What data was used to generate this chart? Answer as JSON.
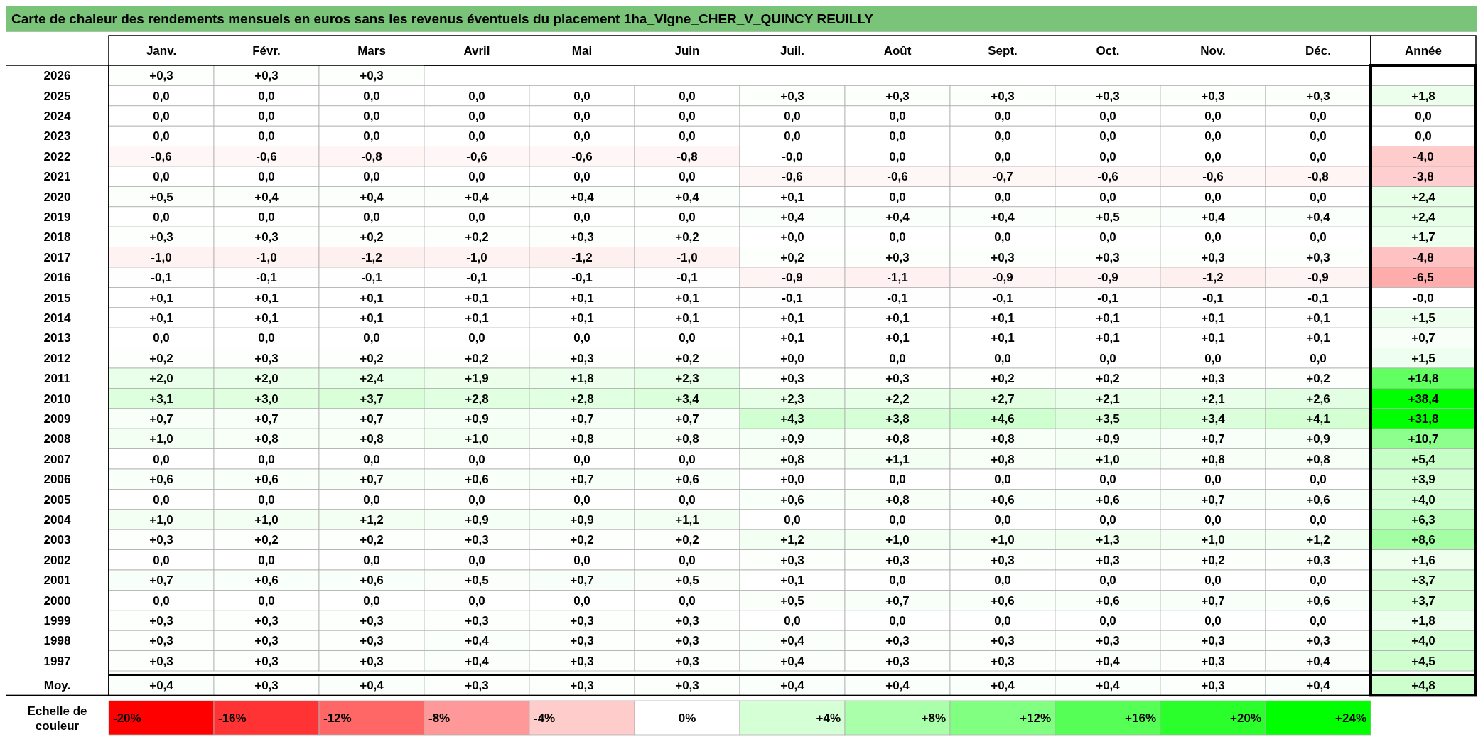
{
  "chart_data": [
    {
      "type": "heatmap",
      "title": "Carte de chaleur des rendements mensuels en euros sans les revenus éventuels du placement 1ha_Vigne_CHER_V_QUINCY REUILLY",
      "categories": [
        "Janv.",
        "Févr.",
        "Mars",
        "Avril",
        "Mai",
        "Juin",
        "Juil.",
        "Août",
        "Sept.",
        "Oct.",
        "Nov.",
        "Déc.",
        "Année"
      ],
      "y_categories": [
        "2026",
        "2025",
        "2024",
        "2023",
        "2022",
        "2021",
        "2020",
        "2019",
        "2018",
        "2017",
        "2016",
        "2015",
        "2014",
        "2013",
        "2012",
        "2011",
        "2010",
        "2009",
        "2008",
        "2007",
        "2006",
        "2005",
        "2004",
        "2003",
        "2002",
        "2001",
        "2000",
        "1999",
        "1998",
        "1997",
        "Moy."
      ],
      "cells": [
        [
          0.3,
          0.3,
          0.3,
          null,
          null,
          null,
          null,
          null,
          null,
          null,
          null,
          null,
          null
        ],
        [
          0.0,
          0.0,
          0.0,
          0.0,
          0.0,
          0.0,
          0.3,
          0.3,
          0.3,
          0.3,
          0.3,
          0.3,
          1.8
        ],
        [
          0.0,
          0.0,
          0.0,
          0.0,
          0.0,
          0.0,
          0.0,
          0.0,
          0.0,
          0.0,
          0.0,
          0.0,
          0.0
        ],
        [
          0.0,
          0.0,
          0.0,
          0.0,
          0.0,
          0.0,
          0.0,
          0.0,
          0.0,
          0.0,
          0.0,
          0.0,
          0.0
        ],
        [
          -0.6,
          -0.6,
          -0.8,
          -0.6,
          -0.6,
          -0.8,
          -0.0,
          0.0,
          0.0,
          0.0,
          0.0,
          0.0,
          -4.0
        ],
        [
          0.0,
          0.0,
          0.0,
          0.0,
          0.0,
          0.0,
          -0.6,
          -0.6,
          -0.7,
          -0.6,
          -0.6,
          -0.8,
          -3.8
        ],
        [
          0.5,
          0.4,
          0.4,
          0.4,
          0.4,
          0.4,
          0.1,
          0.0,
          0.0,
          0.0,
          0.0,
          0.0,
          2.4
        ],
        [
          0.0,
          0.0,
          0.0,
          0.0,
          0.0,
          0.0,
          0.4,
          0.4,
          0.4,
          0.5,
          0.4,
          0.4,
          2.4
        ],
        [
          0.3,
          0.3,
          0.2,
          0.2,
          0.3,
          0.2,
          0.0,
          0.0,
          0.0,
          0.0,
          0.0,
          0.0,
          1.7
        ],
        [
          -1.0,
          -1.0,
          -1.2,
          -1.0,
          -1.2,
          -1.0,
          0.2,
          0.3,
          0.3,
          0.3,
          0.3,
          0.3,
          -4.8
        ],
        [
          -0.1,
          -0.1,
          -0.1,
          -0.1,
          -0.1,
          -0.1,
          -0.9,
          -1.1,
          -0.9,
          -0.9,
          -1.2,
          -0.9,
          -6.5
        ],
        [
          0.1,
          0.1,
          0.1,
          0.1,
          0.1,
          0.1,
          -0.1,
          -0.1,
          -0.1,
          -0.1,
          -0.1,
          -0.1,
          -0.0
        ],
        [
          0.1,
          0.1,
          0.1,
          0.1,
          0.1,
          0.1,
          0.1,
          0.1,
          0.1,
          0.1,
          0.1,
          0.1,
          1.5
        ],
        [
          0.0,
          0.0,
          0.0,
          0.0,
          0.0,
          0.0,
          0.1,
          0.1,
          0.1,
          0.1,
          0.1,
          0.1,
          0.7
        ],
        [
          0.2,
          0.3,
          0.2,
          0.2,
          0.3,
          0.2,
          0.0,
          0.0,
          0.0,
          0.0,
          0.0,
          0.0,
          1.5
        ],
        [
          2.0,
          2.0,
          2.4,
          1.9,
          1.8,
          2.3,
          0.3,
          0.3,
          0.2,
          0.2,
          0.3,
          0.2,
          14.8
        ],
        [
          3.1,
          3.0,
          3.7,
          2.8,
          2.8,
          3.4,
          2.3,
          2.2,
          2.7,
          2.1,
          2.1,
          2.6,
          38.4
        ],
        [
          0.7,
          0.7,
          0.7,
          0.9,
          0.7,
          0.7,
          4.3,
          3.8,
          4.6,
          3.5,
          3.4,
          4.1,
          31.8
        ],
        [
          1.0,
          0.8,
          0.8,
          1.0,
          0.8,
          0.8,
          0.9,
          0.8,
          0.8,
          0.9,
          0.7,
          0.9,
          10.7
        ],
        [
          0.0,
          0.0,
          0.0,
          0.0,
          0.0,
          0.0,
          0.8,
          1.1,
          0.8,
          1.0,
          0.8,
          0.8,
          5.4
        ],
        [
          0.6,
          0.6,
          0.7,
          0.6,
          0.7,
          0.6,
          0.0,
          0.0,
          0.0,
          0.0,
          0.0,
          0.0,
          3.9
        ],
        [
          0.0,
          0.0,
          0.0,
          0.0,
          0.0,
          0.0,
          0.6,
          0.8,
          0.6,
          0.6,
          0.7,
          0.6,
          4.0
        ],
        [
          1.0,
          1.0,
          1.2,
          0.9,
          0.9,
          1.1,
          0.0,
          0.0,
          0.0,
          0.0,
          0.0,
          0.0,
          6.3
        ],
        [
          0.3,
          0.2,
          0.2,
          0.3,
          0.2,
          0.2,
          1.2,
          1.0,
          1.0,
          1.3,
          1.0,
          1.2,
          8.6
        ],
        [
          0.0,
          0.0,
          0.0,
          0.0,
          0.0,
          0.0,
          0.3,
          0.3,
          0.3,
          0.3,
          0.2,
          0.3,
          1.6
        ],
        [
          0.7,
          0.6,
          0.6,
          0.5,
          0.7,
          0.5,
          0.1,
          0.0,
          0.0,
          0.0,
          0.0,
          0.0,
          3.7
        ],
        [
          0.0,
          0.0,
          0.0,
          0.0,
          0.0,
          0.0,
          0.5,
          0.7,
          0.6,
          0.6,
          0.7,
          0.6,
          3.7
        ],
        [
          0.3,
          0.3,
          0.3,
          0.3,
          0.3,
          0.3,
          0.0,
          0.0,
          0.0,
          0.0,
          0.0,
          0.0,
          1.8
        ],
        [
          0.3,
          0.3,
          0.3,
          0.4,
          0.3,
          0.3,
          0.4,
          0.3,
          0.3,
          0.3,
          0.3,
          0.3,
          4.0
        ],
        [
          0.3,
          0.3,
          0.3,
          0.4,
          0.3,
          0.3,
          0.4,
          0.3,
          0.3,
          0.4,
          0.3,
          0.4,
          4.5
        ],
        [
          0.4,
          0.3,
          0.4,
          0.3,
          0.3,
          0.3,
          0.4,
          0.4,
          0.4,
          0.4,
          0.3,
          0.4,
          4.8
        ]
      ],
      "cell_labels": [
        [
          "+0,3",
          "+0,3",
          "+0,3",
          null,
          null,
          null,
          null,
          null,
          null,
          null,
          null,
          null,
          null
        ],
        [
          "0,0",
          "0,0",
          "0,0",
          "0,0",
          "0,0",
          "0,0",
          "+0,3",
          "+0,3",
          "+0,3",
          "+0,3",
          "+0,3",
          "+0,3",
          "+1,8"
        ],
        [
          "0,0",
          "0,0",
          "0,0",
          "0,0",
          "0,0",
          "0,0",
          "0,0",
          "0,0",
          "0,0",
          "0,0",
          "0,0",
          "0,0",
          "0,0"
        ],
        [
          "0,0",
          "0,0",
          "0,0",
          "0,0",
          "0,0",
          "0,0",
          "0,0",
          "0,0",
          "0,0",
          "0,0",
          "0,0",
          "0,0",
          "0,0"
        ],
        [
          "-0,6",
          "-0,6",
          "-0,8",
          "-0,6",
          "-0,6",
          "-0,8",
          "-0,0",
          "0,0",
          "0,0",
          "0,0",
          "0,0",
          "0,0",
          "-4,0"
        ],
        [
          "0,0",
          "0,0",
          "0,0",
          "0,0",
          "0,0",
          "0,0",
          "-0,6",
          "-0,6",
          "-0,7",
          "-0,6",
          "-0,6",
          "-0,8",
          "-3,8"
        ],
        [
          "+0,5",
          "+0,4",
          "+0,4",
          "+0,4",
          "+0,4",
          "+0,4",
          "+0,1",
          "0,0",
          "0,0",
          "0,0",
          "0,0",
          "0,0",
          "+2,4"
        ],
        [
          "0,0",
          "0,0",
          "0,0",
          "0,0",
          "0,0",
          "0,0",
          "+0,4",
          "+0,4",
          "+0,4",
          "+0,5",
          "+0,4",
          "+0,4",
          "+2,4"
        ],
        [
          "+0,3",
          "+0,3",
          "+0,2",
          "+0,2",
          "+0,3",
          "+0,2",
          "+0,0",
          "0,0",
          "0,0",
          "0,0",
          "0,0",
          "0,0",
          "+1,7"
        ],
        [
          "-1,0",
          "-1,0",
          "-1,2",
          "-1,0",
          "-1,2",
          "-1,0",
          "+0,2",
          "+0,3",
          "+0,3",
          "+0,3",
          "+0,3",
          "+0,3",
          "-4,8"
        ],
        [
          "-0,1",
          "-0,1",
          "-0,1",
          "-0,1",
          "-0,1",
          "-0,1",
          "-0,9",
          "-1,1",
          "-0,9",
          "-0,9",
          "-1,2",
          "-0,9",
          "-6,5"
        ],
        [
          "+0,1",
          "+0,1",
          "+0,1",
          "+0,1",
          "+0,1",
          "+0,1",
          "-0,1",
          "-0,1",
          "-0,1",
          "-0,1",
          "-0,1",
          "-0,1",
          "-0,0"
        ],
        [
          "+0,1",
          "+0,1",
          "+0,1",
          "+0,1",
          "+0,1",
          "+0,1",
          "+0,1",
          "+0,1",
          "+0,1",
          "+0,1",
          "+0,1",
          "+0,1",
          "+1,5"
        ],
        [
          "0,0",
          "0,0",
          "0,0",
          "0,0",
          "0,0",
          "0,0",
          "+0,1",
          "+0,1",
          "+0,1",
          "+0,1",
          "+0,1",
          "+0,1",
          "+0,7"
        ],
        [
          "+0,2",
          "+0,3",
          "+0,2",
          "+0,2",
          "+0,3",
          "+0,2",
          "+0,0",
          "0,0",
          "0,0",
          "0,0",
          "0,0",
          "0,0",
          "+1,5"
        ],
        [
          "+2,0",
          "+2,0",
          "+2,4",
          "+1,9",
          "+1,8",
          "+2,3",
          "+0,3",
          "+0,3",
          "+0,2",
          "+0,2",
          "+0,3",
          "+0,2",
          "+14,8"
        ],
        [
          "+3,1",
          "+3,0",
          "+3,7",
          "+2,8",
          "+2,8",
          "+3,4",
          "+2,3",
          "+2,2",
          "+2,7",
          "+2,1",
          "+2,1",
          "+2,6",
          "+38,4"
        ],
        [
          "+0,7",
          "+0,7",
          "+0,7",
          "+0,9",
          "+0,7",
          "+0,7",
          "+4,3",
          "+3,8",
          "+4,6",
          "+3,5",
          "+3,4",
          "+4,1",
          "+31,8"
        ],
        [
          "+1,0",
          "+0,8",
          "+0,8",
          "+1,0",
          "+0,8",
          "+0,8",
          "+0,9",
          "+0,8",
          "+0,8",
          "+0,9",
          "+0,7",
          "+0,9",
          "+10,7"
        ],
        [
          "0,0",
          "0,0",
          "0,0",
          "0,0",
          "0,0",
          "0,0",
          "+0,8",
          "+1,1",
          "+0,8",
          "+1,0",
          "+0,8",
          "+0,8",
          "+5,4"
        ],
        [
          "+0,6",
          "+0,6",
          "+0,7",
          "+0,6",
          "+0,7",
          "+0,6",
          "+0,0",
          "0,0",
          "0,0",
          "0,0",
          "0,0",
          "0,0",
          "+3,9"
        ],
        [
          "0,0",
          "0,0",
          "0,0",
          "0,0",
          "0,0",
          "0,0",
          "+0,6",
          "+0,8",
          "+0,6",
          "+0,6",
          "+0,7",
          "+0,6",
          "+4,0"
        ],
        [
          "+1,0",
          "+1,0",
          "+1,2",
          "+0,9",
          "+0,9",
          "+1,1",
          "0,0",
          "0,0",
          "0,0",
          "0,0",
          "0,0",
          "0,0",
          "+6,3"
        ],
        [
          "+0,3",
          "+0,2",
          "+0,2",
          "+0,3",
          "+0,2",
          "+0,2",
          "+1,2",
          "+1,0",
          "+1,0",
          "+1,3",
          "+1,0",
          "+1,2",
          "+8,6"
        ],
        [
          "0,0",
          "0,0",
          "0,0",
          "0,0",
          "0,0",
          "0,0",
          "+0,3",
          "+0,3",
          "+0,3",
          "+0,3",
          "+0,2",
          "+0,3",
          "+1,6"
        ],
        [
          "+0,7",
          "+0,6",
          "+0,6",
          "+0,5",
          "+0,7",
          "+0,5",
          "+0,1",
          "0,0",
          "0,0",
          "0,0",
          "0,0",
          "0,0",
          "+3,7"
        ],
        [
          "0,0",
          "0,0",
          "0,0",
          "0,0",
          "0,0",
          "0,0",
          "+0,5",
          "+0,7",
          "+0,6",
          "+0,6",
          "+0,7",
          "+0,6",
          "+3,7"
        ],
        [
          "+0,3",
          "+0,3",
          "+0,3",
          "+0,3",
          "+0,3",
          "+0,3",
          "0,0",
          "0,0",
          "0,0",
          "0,0",
          "0,0",
          "0,0",
          "+1,8"
        ],
        [
          "+0,3",
          "+0,3",
          "+0,3",
          "+0,4",
          "+0,3",
          "+0,3",
          "+0,4",
          "+0,3",
          "+0,3",
          "+0,3",
          "+0,3",
          "+0,3",
          "+4,0"
        ],
        [
          "+0,3",
          "+0,3",
          "+0,3",
          "+0,4",
          "+0,3",
          "+0,3",
          "+0,4",
          "+0,3",
          "+0,3",
          "+0,4",
          "+0,3",
          "+0,4",
          "+4,5"
        ],
        [
          "+0,4",
          "+0,3",
          "+0,4",
          "+0,3",
          "+0,3",
          "+0,3",
          "+0,4",
          "+0,4",
          "+0,4",
          "+0,4",
          "+0,3",
          "+0,4",
          "+4,8"
        ]
      ]
    },
    {
      "type": "heatmap",
      "categories": [
        null,
        null,
        null,
        null,
        null,
        null,
        null,
        null,
        null,
        null,
        null,
        null
      ],
      "y_categories": [
        "Echelle de couleur"
      ],
      "cells": [
        [
          -20,
          -16,
          -12,
          -8,
          -4,
          0,
          4,
          8,
          12,
          16,
          20,
          24
        ]
      ],
      "cell_labels": [
        [
          "-20%",
          "-16%",
          "-12%",
          "-8%",
          "-4%",
          "0%",
          "+4%",
          "+8%",
          "+12%",
          "+16%",
          "+20%",
          "+24%"
        ]
      ]
    }
  ]
}
